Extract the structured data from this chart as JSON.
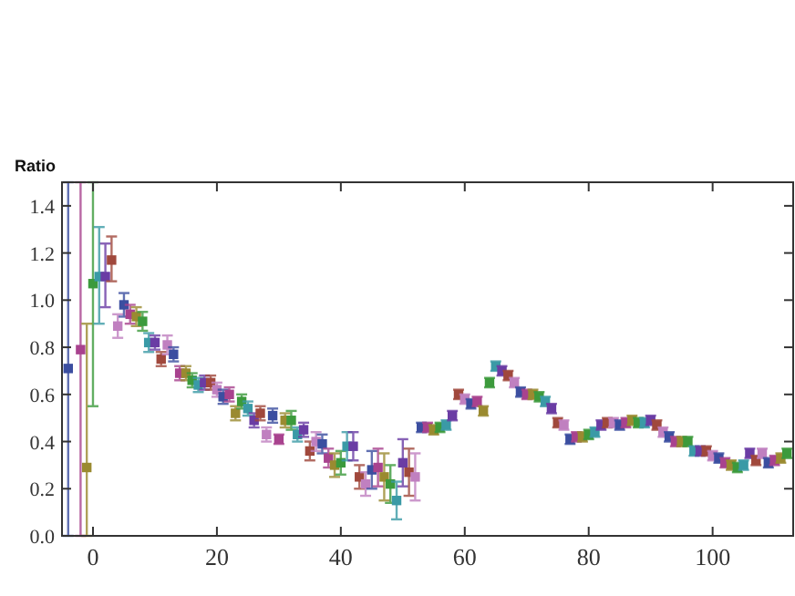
{
  "chart_data": {
    "type": "scatter",
    "ylabel": "Ratio",
    "marker": "square",
    "grid": false,
    "xlim": [
      -5,
      113
    ],
    "ylim": [
      0,
      1.5
    ],
    "xticks": [
      0,
      20,
      40,
      60,
      80,
      100
    ],
    "yticks": [
      {
        "value": 0,
        "label": "0.0"
      },
      {
        "value": 0.2,
        "label": "0.2"
      },
      {
        "value": 0.4,
        "label": "0.4"
      },
      {
        "value": 0.6,
        "label": "0.6"
      },
      {
        "value": 0.8,
        "label": "0.8"
      },
      {
        "value": 1,
        "label": "1.0"
      },
      {
        "value": 1.2,
        "label": "1.2"
      },
      {
        "value": 1.4,
        "label": "1.4"
      }
    ],
    "x": [
      -4,
      -2,
      -1,
      0,
      1,
      2,
      3,
      4,
      5,
      6,
      7,
      8,
      9,
      10,
      11,
      12,
      13,
      14,
      15,
      16,
      17,
      18,
      19,
      20,
      21,
      22,
      23,
      24,
      25,
      26,
      27,
      28,
      29,
      30,
      31,
      32,
      33,
      34,
      35,
      36,
      37,
      38,
      39,
      40,
      41,
      42,
      43,
      44,
      45,
      46,
      47,
      48,
      49,
      50,
      51,
      52,
      53,
      54,
      55,
      56,
      57,
      58,
      59,
      60,
      61,
      62,
      63,
      64,
      65,
      66,
      67,
      68,
      69,
      70,
      71,
      72,
      73,
      74,
      75,
      76,
      77,
      78,
      79,
      80,
      81,
      82,
      83,
      84,
      85,
      86,
      87,
      88,
      89,
      90,
      91,
      92,
      93,
      94,
      95,
      96,
      97,
      98,
      99,
      100,
      101,
      102,
      103,
      104,
      105,
      106,
      107,
      108,
      109,
      110,
      111,
      112
    ],
    "values": [
      0.71,
      0.79,
      0.29,
      1.07,
      1.1,
      1.1,
      1.17,
      0.89,
      0.98,
      0.94,
      0.93,
      0.91,
      0.82,
      0.82,
      0.75,
      0.81,
      0.77,
      0.69,
      0.69,
      0.66,
      0.64,
      0.65,
      0.65,
      0.62,
      0.59,
      0.6,
      0.52,
      0.57,
      0.54,
      0.49,
      0.52,
      0.43,
      0.51,
      0.41,
      0.49,
      0.49,
      0.43,
      0.45,
      0.36,
      0.4,
      0.39,
      0.33,
      0.3,
      0.31,
      0.38,
      0.38,
      0.25,
      0.22,
      0.28,
      0.29,
      0.25,
      0.22,
      0.15,
      0.31,
      0.27,
      0.25,
      0.46,
      0.46,
      0.45,
      0.46,
      0.47,
      0.51,
      0.6,
      0.58,
      0.56,
      0.57,
      0.53,
      0.65,
      0.72,
      0.7,
      0.68,
      0.65,
      0.61,
      0.6,
      0.6,
      0.59,
      0.57,
      0.54,
      0.48,
      0.47,
      0.41,
      0.42,
      0.42,
      0.43,
      0.44,
      0.47,
      0.48,
      0.48,
      0.47,
      0.48,
      0.49,
      0.48,
      0.48,
      0.49,
      0.47,
      0.44,
      0.42,
      0.4,
      0.4,
      0.4,
      0.36,
      0.36,
      0.36,
      0.34,
      0.33,
      0.31,
      0.3,
      0.29,
      0.3,
      0.35,
      0.32,
      0.35,
      0.31,
      0.32,
      0.33,
      0.35
    ],
    "errors": [
      [
        0,
        1.5
      ],
      [
        0,
        1.5
      ],
      [
        0,
        0.9
      ],
      [
        0.55,
        1.5
      ],
      [
        0.9,
        1.31
      ],
      [
        0.97,
        1.24
      ],
      [
        1.08,
        1.27
      ],
      0.05,
      0.05,
      0.04,
      0.04,
      0.04,
      0.04,
      0.03,
      0.03,
      0.04,
      0.03,
      0.03,
      0.03,
      0.03,
      0.03,
      0.03,
      0.03,
      0.03,
      0.03,
      0.03,
      0.03,
      0.03,
      0.03,
      0.03,
      0.03,
      0.03,
      0.03,
      0.02,
      0.03,
      0.04,
      0.03,
      0.03,
      0.04,
      0.04,
      0.04,
      0.04,
      0.05,
      0.05,
      0.06,
      0.06,
      0.05,
      0.05,
      0.08,
      0.08,
      0.1,
      0.08,
      0.08,
      0.1,
      0.1,
      0.1,
      0.02,
      0.02,
      0.02,
      0.02,
      0.02,
      0.02,
      0.02,
      0.02,
      0.02,
      0.02,
      0.02,
      0.02,
      0.02,
      0.02,
      0.02,
      0.02,
      0.02,
      0.02,
      0.02,
      0.02,
      0.02,
      0.02,
      0.02,
      0.02,
      0.02,
      0.02,
      0.02,
      0.02,
      0.02,
      0.02,
      0.02,
      0.02,
      0.02,
      0.02,
      0.02,
      0.02,
      0.02,
      0.02,
      0.02,
      0.02,
      0.02,
      0.02,
      0.02,
      0.02,
      0.02,
      0.02,
      0.02,
      0.02,
      0.02,
      0.02,
      0.02,
      0.02,
      0.02,
      0.02,
      0.02,
      0.02,
      0.02,
      0.02,
      0.02,
      0.02
    ],
    "colors": [
      "#3b4ea0",
      "#a8428e",
      "#9a8a30",
      "#3c9a3c",
      "#3a9aa6",
      "#6a3ca4",
      "#a0483c",
      "#c080c0",
      "#3b4ea0",
      "#a8428e",
      "#9a8a30",
      "#3c9a3c",
      "#3a9aa6",
      "#6a3ca4",
      "#a0483c",
      "#c080c0",
      "#3b4ea0",
      "#a8428e",
      "#9a8a30",
      "#3c9a3c",
      "#3a9aa6",
      "#6a3ca4",
      "#a0483c",
      "#c080c0",
      "#3b4ea0",
      "#a8428e",
      "#9a8a30",
      "#3c9a3c",
      "#3a9aa6",
      "#6a3ca4",
      "#a0483c",
      "#c080c0",
      "#3b4ea0",
      "#a8428e",
      "#9a8a30",
      "#3c9a3c",
      "#3a9aa6",
      "#6a3ca4",
      "#a0483c",
      "#c080c0",
      "#3b4ea0",
      "#a8428e",
      "#9a8a30",
      "#3c9a3c",
      "#3a9aa6",
      "#6a3ca4",
      "#a0483c",
      "#c080c0",
      "#3b4ea0",
      "#a8428e",
      "#9a8a30",
      "#3c9a3c",
      "#3a9aa6",
      "#6a3ca4",
      "#a0483c",
      "#c080c0",
      "#3b4ea0",
      "#a8428e",
      "#9a8a30",
      "#3c9a3c",
      "#3a9aa6",
      "#6a3ca4",
      "#a0483c",
      "#c080c0",
      "#3b4ea0",
      "#a8428e",
      "#9a8a30",
      "#3c9a3c",
      "#3a9aa6",
      "#6a3ca4",
      "#a0483c",
      "#c080c0",
      "#3b4ea0",
      "#a8428e",
      "#9a8a30",
      "#3c9a3c",
      "#3a9aa6",
      "#6a3ca4",
      "#a0483c",
      "#c080c0",
      "#3b4ea0",
      "#a8428e",
      "#9a8a30",
      "#3c9a3c",
      "#3a9aa6",
      "#6a3ca4",
      "#a0483c",
      "#c080c0",
      "#3b4ea0",
      "#a8428e",
      "#9a8a30",
      "#3c9a3c",
      "#3a9aa6",
      "#6a3ca4",
      "#a0483c",
      "#c080c0",
      "#3b4ea0",
      "#a8428e",
      "#9a8a30",
      "#3c9a3c",
      "#3a9aa6",
      "#6a3ca4",
      "#a0483c",
      "#c080c0",
      "#3b4ea0",
      "#a8428e",
      "#9a8a30",
      "#3c9a3c",
      "#3a9aa6",
      "#6a3ca4",
      "#a0483c",
      "#c080c0",
      "#3b4ea0",
      "#a8428e",
      "#9a8a30",
      "#3c9a3c"
    ]
  }
}
